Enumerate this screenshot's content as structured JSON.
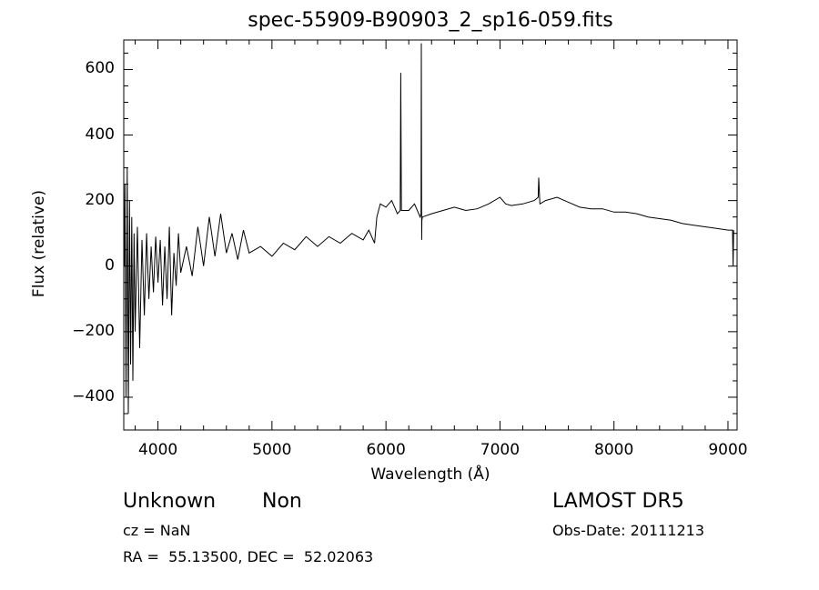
{
  "chart_data": {
    "type": "line",
    "title": "spec-55909-B90903_2_sp16-059.fits",
    "xlabel": "Wavelength (Å)",
    "ylabel": "Flux (relative)",
    "xlim": [
      3700,
      9080
    ],
    "ylim": [
      -500,
      690
    ],
    "xticks": [
      4000,
      5000,
      6000,
      7000,
      8000,
      9000
    ],
    "yticks": [
      -400,
      -200,
      0,
      200,
      400,
      600
    ],
    "grid": false,
    "series": [
      {
        "name": "flux",
        "x": [
          3705,
          3710,
          3720,
          3730,
          3740,
          3750,
          3760,
          3770,
          3780,
          3790,
          3800,
          3820,
          3840,
          3860,
          3880,
          3900,
          3920,
          3940,
          3960,
          3980,
          4000,
          4020,
          4040,
          4060,
          4080,
          4100,
          4120,
          4140,
          4160,
          4180,
          4200,
          4250,
          4300,
          4350,
          4400,
          4450,
          4500,
          4550,
          4600,
          4650,
          4700,
          4750,
          4800,
          4900,
          5000,
          5100,
          5200,
          5300,
          5400,
          5500,
          5600,
          5700,
          5800,
          5850,
          5900,
          5920,
          5950,
          6000,
          6050,
          6100,
          6125,
          6130,
          6135,
          6200,
          6250,
          6300,
          6308,
          6310,
          6313,
          6315,
          6320,
          6400,
          6500,
          6600,
          6700,
          6800,
          6900,
          7000,
          7050,
          7100,
          7200,
          7300,
          7335,
          7340,
          7350,
          7400,
          7500,
          7600,
          7700,
          7800,
          7900,
          8000,
          8100,
          8200,
          8300,
          8400,
          8500,
          8600,
          8700,
          8800,
          8900,
          9000,
          9040,
          9045,
          9050
        ],
        "y": [
          0,
          250,
          -400,
          300,
          -450,
          200,
          -300,
          150,
          -350,
          100,
          -200,
          120,
          -250,
          80,
          -150,
          100,
          -100,
          60,
          -80,
          90,
          -50,
          80,
          -120,
          60,
          -100,
          120,
          -150,
          40,
          -60,
          100,
          -20,
          60,
          -30,
          120,
          0,
          150,
          30,
          160,
          40,
          100,
          20,
          110,
          40,
          60,
          30,
          70,
          50,
          90,
          60,
          90,
          70,
          100,
          80,
          110,
          70,
          150,
          190,
          180,
          200,
          160,
          170,
          590,
          170,
          170,
          190,
          150,
          160,
          680,
          80,
          140,
          150,
          160,
          170,
          180,
          170,
          175,
          190,
          210,
          190,
          185,
          190,
          200,
          210,
          270,
          190,
          200,
          210,
          195,
          180,
          175,
          175,
          165,
          165,
          160,
          150,
          145,
          140,
          130,
          125,
          120,
          115,
          110,
          110,
          0,
          110
        ]
      }
    ],
    "annotations": {
      "class": "Unknown",
      "subclass": "Non",
      "cz": "cz = NaN",
      "radec": "RA =  55.13500, DEC =  52.02063",
      "survey": "LAMOST DR5",
      "obsdate": "Obs-Date: 20111213"
    }
  }
}
